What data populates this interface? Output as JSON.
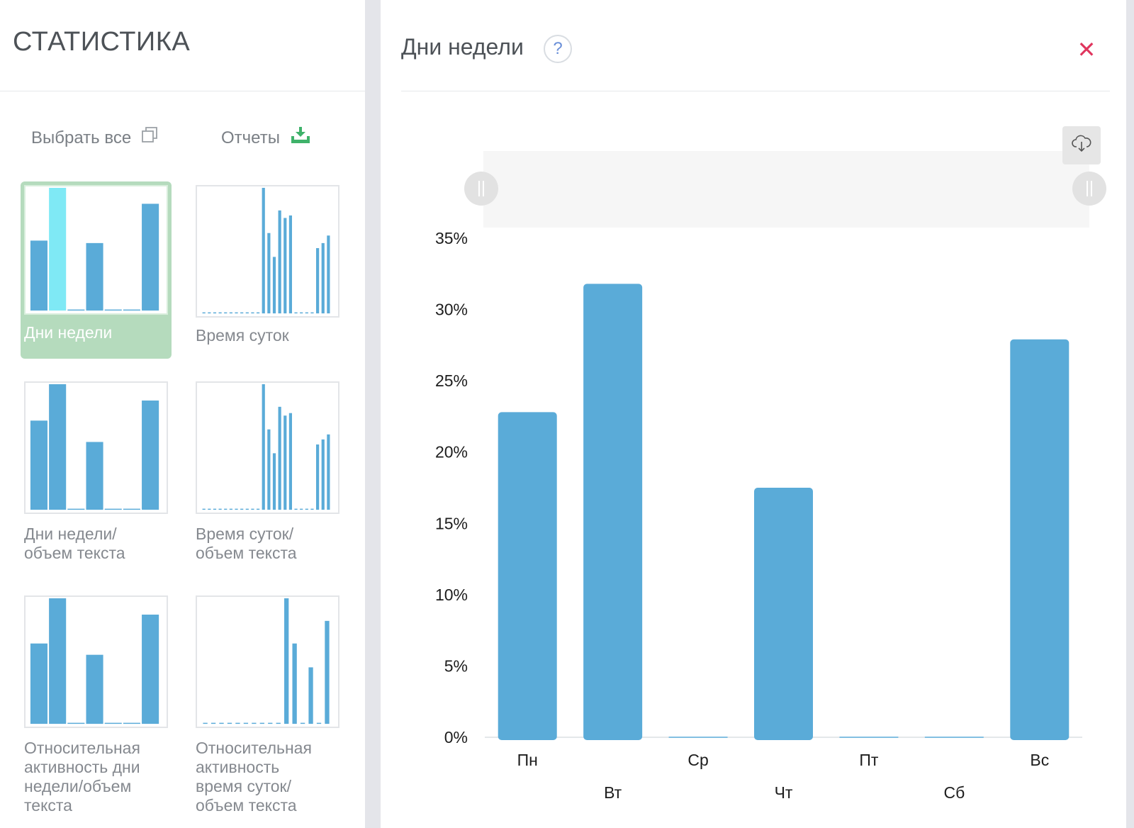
{
  "left": {
    "title": "СТАТИСТИКА",
    "select_all": {
      "label": "Выбрать все",
      "icon": "copy-icon"
    },
    "reports": {
      "label": "Отчеты",
      "icon": "download-tray-icon",
      "icon_color": "#3fb26a"
    },
    "thumbnails": [
      {
        "label": "Дни недели",
        "selected": true,
        "kind": "bar",
        "values": [
          0.57,
          1.0,
          0.0,
          0.55,
          0.0,
          0.0,
          0.87
        ],
        "highlight": 1
      },
      {
        "label": "Время суток",
        "selected": false,
        "kind": "bar",
        "values": [
          0,
          0,
          0,
          0,
          0,
          0,
          0,
          0,
          0,
          0,
          0,
          1.0,
          0.64,
          0.45,
          0.82,
          0.76,
          0.78,
          0,
          0,
          0,
          0,
          0.52,
          0.56,
          0.62
        ]
      },
      {
        "label": "Дни недели/\nобъем текста",
        "selected": false,
        "kind": "bar",
        "values": [
          0.71,
          1.0,
          0.0,
          0.54,
          0.0,
          0.0,
          0.87
        ]
      },
      {
        "label": "Время суток/\nобъем текста",
        "selected": false,
        "kind": "bar",
        "values": [
          0,
          0,
          0,
          0,
          0,
          0,
          0,
          0,
          0,
          0,
          0,
          1.0,
          0.64,
          0.45,
          0.82,
          0.75,
          0.77,
          0,
          0,
          0,
          0,
          0.52,
          0.56,
          0.6
        ]
      },
      {
        "label": "Относительная\nактивность дни\nнедели/объем\nтекста",
        "selected": false,
        "kind": "bar",
        "values": [
          0.64,
          1.0,
          0.0,
          0.55,
          0.0,
          0.0,
          0.87
        ]
      },
      {
        "label": "Относительная\nактивность\nвремя суток/\nобъем текста",
        "selected": false,
        "kind": "bar",
        "values": [
          0,
          0,
          0,
          0,
          0,
          0,
          0,
          0,
          0,
          0,
          1.0,
          0.64,
          0,
          0.45,
          0,
          0.82
        ]
      }
    ]
  },
  "right": {
    "title": "Дни недели",
    "help_icon": "question-icon",
    "close_icon": "close-icon",
    "download_icon": "cloud-download-icon"
  },
  "colors": {
    "bar": "#5aabd8",
    "bar_highlight": "#7fe9f5",
    "accent_green": "#b5dbbd",
    "close": "#e0365e"
  },
  "chart_data": {
    "type": "bar",
    "categories": [
      "Пн",
      "Вт",
      "Ср",
      "Чт",
      "Пт",
      "Сб",
      "Вс"
    ],
    "values": [
      22.8,
      31.8,
      0,
      17.5,
      0,
      0,
      27.9
    ],
    "ylim": [
      0,
      35
    ],
    "yticks": [
      "0%",
      "5%",
      "10%",
      "15%",
      "20%",
      "25%",
      "30%",
      "35%"
    ],
    "yunit": "%",
    "grid": false
  }
}
